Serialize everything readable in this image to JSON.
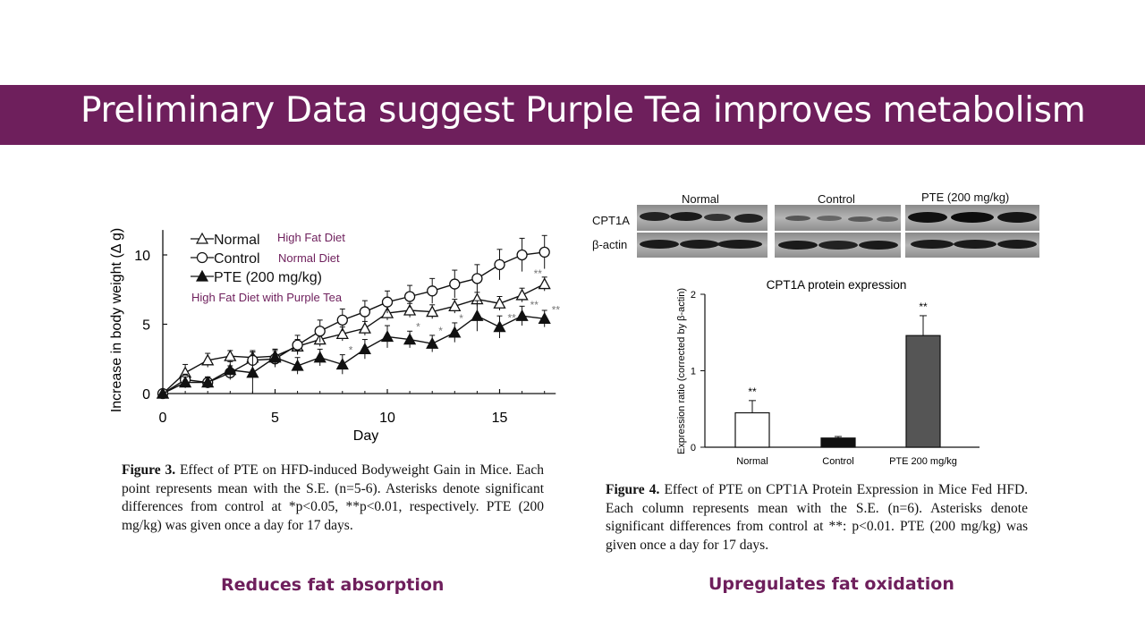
{
  "slide": {
    "title": "Preliminary Data suggest Purple Tea improves metabolism",
    "left_subtitle": "Reduces fat absorption",
    "right_subtitle": "Upregulates fat oxidation",
    "annotations": [
      "High Fat Diet",
      "Normal Diet",
      "High Fat Diet with Purple Tea"
    ]
  },
  "figure3": {
    "caption_label": "Figure 3.",
    "caption_text": "Effect of PTE on HFD-induced Bodyweight Gain in Mice. Each point represents mean with the S.E. (n=5-6). Asterisks denote significant differences from control at *p<0.05, **p<0.01, respectively. PTE (200 mg/kg) was given once a day for 17 days."
  },
  "figure4": {
    "caption_label": "Figure 4.",
    "caption_text": "Effect of PTE on CPT1A Protein Expression in Mice Fed HFD. Each column represents mean with the S.E. (n=6). Asterisks denote significant differences from control at **: p<0.01. PTE (200 mg/kg) was given once a day for 17 days.",
    "blot": {
      "group_labels": [
        "Normal",
        "Control",
        "PTE (200 mg/kg)"
      ],
      "row_labels": [
        "CPT1A",
        "β-actin"
      ]
    }
  },
  "chart_data": [
    {
      "type": "line",
      "title": "",
      "xlabel": "Day",
      "ylabel": "Increase in body weight (Δ g)",
      "xlim": [
        0,
        17
      ],
      "ylim": [
        0,
        12
      ],
      "xticks": [
        0,
        5,
        10,
        15
      ],
      "yticks": [
        0,
        5,
        10
      ],
      "legend_position": "top-left",
      "x": [
        0,
        1,
        2,
        3,
        4,
        5,
        6,
        7,
        8,
        9,
        10,
        11,
        12,
        13,
        14,
        15,
        16,
        17
      ],
      "series": [
        {
          "name": "Normal",
          "marker": "open-triangle",
          "values": [
            0,
            1.5,
            2.4,
            2.7,
            2.6,
            2.7,
            3.4,
            3.9,
            4.3,
            4.7,
            5.8,
            6.0,
            5.9,
            6.3,
            6.8,
            6.5,
            7.1,
            7.9
          ],
          "errors": [
            0,
            0.6,
            0.5,
            0.4,
            0.5,
            0.5,
            0.5,
            0.5,
            0.5,
            0.5,
            0.5,
            0.5,
            0.5,
            0.5,
            0.5,
            0.5,
            0.5,
            0.5
          ]
        },
        {
          "name": "Control",
          "marker": "open-circle",
          "values": [
            0,
            1.0,
            0.8,
            1.5,
            2.4,
            2.5,
            3.5,
            4.5,
            5.3,
            5.9,
            6.6,
            7.0,
            7.4,
            7.9,
            8.3,
            9.3,
            10.0,
            10.2
          ],
          "errors": [
            0,
            0.4,
            0.4,
            0.5,
            0.6,
            0.6,
            0.7,
            0.8,
            0.8,
            0.8,
            0.8,
            0.8,
            0.9,
            1.0,
            1.0,
            1.1,
            1.2,
            1.2
          ]
        },
        {
          "name": "PTE (200 mg/kg)",
          "marker": "filled-triangle",
          "values": [
            0,
            0.8,
            0.8,
            1.7,
            1.5,
            2.6,
            2.0,
            2.6,
            2.1,
            3.2,
            4.1,
            3.9,
            3.6,
            4.4,
            5.6,
            4.8,
            5.6,
            5.4
          ],
          "errors": [
            0,
            0.4,
            0.4,
            0.6,
            1.5,
            0.6,
            0.6,
            0.6,
            0.7,
            0.7,
            0.8,
            0.6,
            0.6,
            0.7,
            1.1,
            0.8,
            0.7,
            0.6
          ]
        }
      ],
      "significance": [
        {
          "x": 8,
          "label": "*"
        },
        {
          "x": 11,
          "label": "*"
        },
        {
          "x": 12,
          "label": "*"
        },
        {
          "x": 13,
          "label": "*"
        },
        {
          "x": 15,
          "label": "**"
        },
        {
          "x": 16,
          "label": "**"
        },
        {
          "x": 17,
          "label": "**"
        },
        {
          "x": 16,
          "label": "**"
        }
      ]
    },
    {
      "type": "bar",
      "title": "CPT1A protein expression",
      "xlabel": "",
      "ylabel": "Expression ratio (corrected by β-actin)",
      "ylim": [
        0,
        2
      ],
      "yticks": [
        0,
        1,
        2
      ],
      "categories": [
        "Normal",
        "Control",
        "PTE 200 mg/kg"
      ],
      "values": [
        0.45,
        0.12,
        1.46
      ],
      "errors": [
        0.16,
        0.02,
        0.26
      ],
      "significance": [
        "**",
        "",
        "**"
      ],
      "colors": [
        "#ffffff",
        "#111111",
        "#555555"
      ]
    }
  ]
}
